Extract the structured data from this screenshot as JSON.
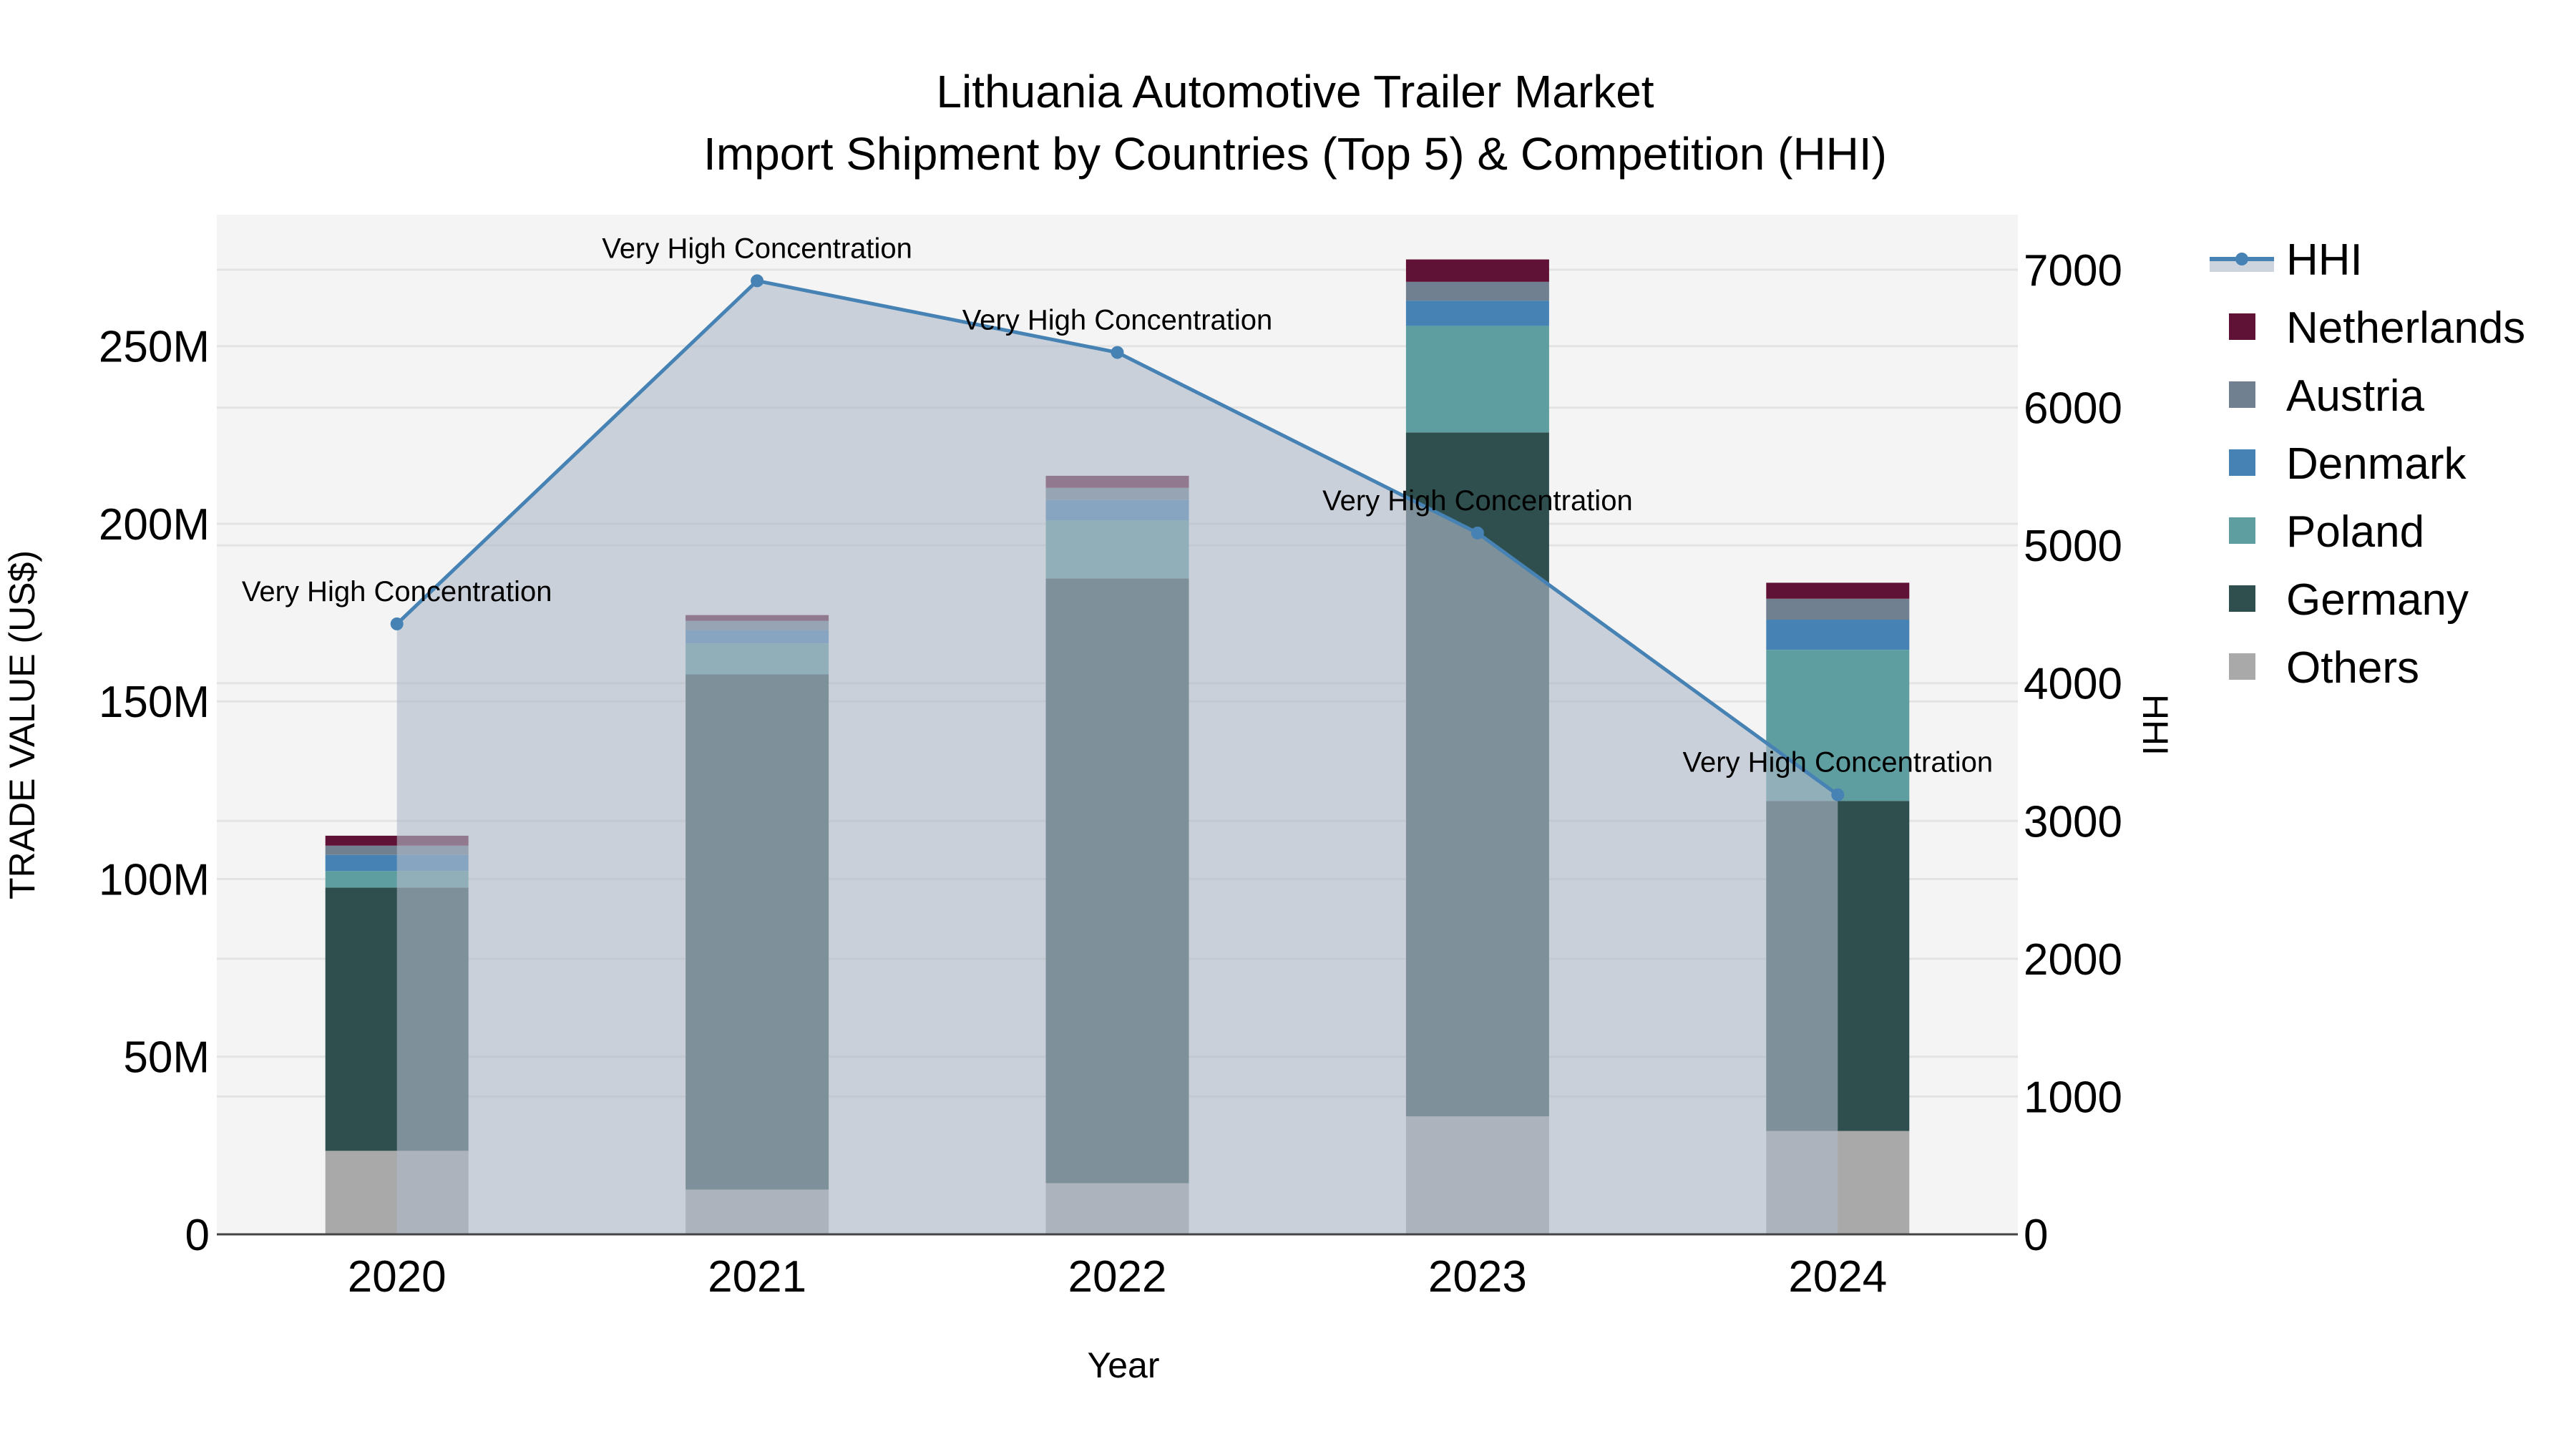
{
  "chart_data": {
    "type": "bar",
    "subtype": "stacked-bar-with-line-area-secondary-axis",
    "title": "Lithuania Automotive Trailer Market",
    "subtitle": "Import Shipment by Countries (Top 5) & Competition (HHI)",
    "xlabel": "Year",
    "ylabel": "TRADE VALUE (US$)",
    "y2label": "HHI",
    "categories": [
      "2020",
      "2021",
      "2022",
      "2023",
      "2024"
    ],
    "ylim": [
      0,
      287000000
    ],
    "y_ticks": [
      0,
      50000000,
      100000000,
      150000000,
      200000000,
      250000000
    ],
    "y_tick_labels": [
      "0",
      "50M",
      "100M",
      "150M",
      "200M",
      "250M"
    ],
    "y2lim": [
      0,
      7400
    ],
    "y2_ticks": [
      0,
      1000,
      2000,
      3000,
      4000,
      5000,
      6000,
      7000
    ],
    "y2_tick_labels": [
      "0",
      "1000",
      "2000",
      "3000",
      "4000",
      "5000",
      "6000",
      "7000"
    ],
    "grid": true,
    "legend_position": "right",
    "series": [
      {
        "name": "Others",
        "color": "#a9a9a9",
        "values": [
          23500000,
          12600000,
          14400000,
          33200000,
          29100000
        ]
      },
      {
        "name": "Germany",
        "color": "#2f4f4f",
        "values": [
          74100000,
          145000000,
          170200000,
          192500000,
          92900000
        ]
      },
      {
        "name": "Poland",
        "color": "#5f9ea0",
        "values": [
          4700000,
          8700000,
          16400000,
          30000000,
          42500000
        ]
      },
      {
        "name": "Denmark",
        "color": "#4682b4",
        "values": [
          4500000,
          3800000,
          5700000,
          7100000,
          8500000
        ]
      },
      {
        "name": "Austria",
        "color": "#708090",
        "values": [
          2600000,
          2600000,
          3400000,
          5300000,
          5900000
        ]
      },
      {
        "name": "Netherlands",
        "color": "#601236",
        "values": [
          2800000,
          1600000,
          3400000,
          6300000,
          4500000
        ]
      }
    ],
    "line_series": {
      "name": "HHI",
      "axis": "y2",
      "color": "#4682b4",
      "fill_color": "rgba(176,186,200,0.62)",
      "values": [
        4430,
        6920,
        6400,
        5090,
        3190
      ],
      "annotations": [
        "Very High Concentration",
        "Very High Concentration",
        "Very High Concentration",
        "Very High Concentration",
        "Very High Concentration"
      ]
    },
    "legend_order": [
      "HHI",
      "Netherlands",
      "Austria",
      "Denmark",
      "Poland",
      "Germany",
      "Others"
    ]
  },
  "colors": {
    "plot_bg": "#f4f4f4",
    "grid": "#e3e3e3",
    "axis_line": "#444444"
  }
}
